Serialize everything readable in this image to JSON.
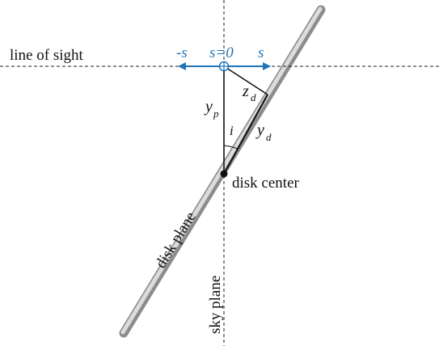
{
  "labels": {
    "line_of_sight": "line of sight",
    "sky_plane": "sky plane",
    "disk_plane": "disk plane",
    "disk_center": "disk center",
    "neg_s": "-s",
    "s_zero": "s=0",
    "pos_s": "s",
    "y_p_main": "y",
    "y_p_sub": "p",
    "y_d_main": "y",
    "y_d_sub": "d",
    "z_d_main": "z",
    "z_d_sub": "d",
    "angle_i": "i"
  },
  "colors": {
    "axis_blue": "#1f73b7",
    "line": "#111111",
    "disk_gray": "#9a9a9a"
  }
}
